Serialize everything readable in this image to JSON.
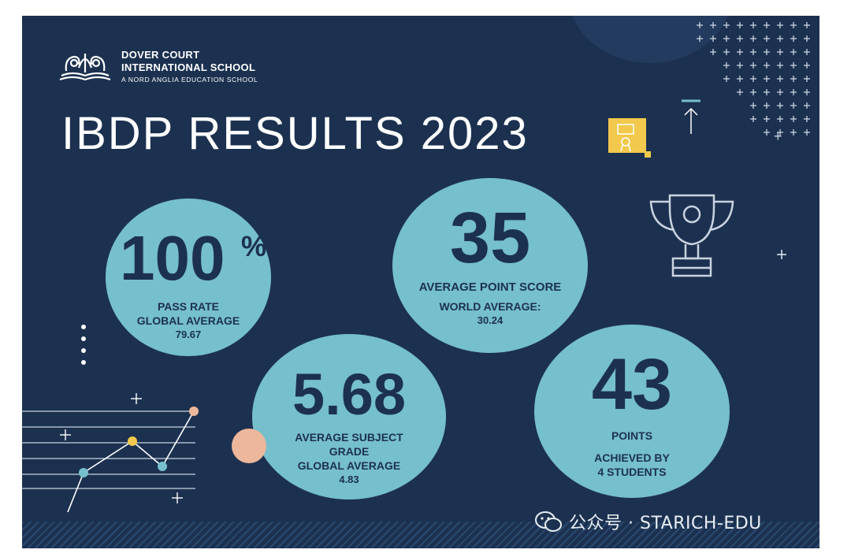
{
  "school": {
    "name_line1": "DOVER COURT",
    "name_line2": "INTERNATIONAL SCHOOL",
    "subtitle": "A NORD ANGLIA EDUCATION SCHOOL"
  },
  "title": "IBDP RESULTS 2023",
  "stats": {
    "pass_rate": {
      "value": "100",
      "unit": "%",
      "label1": "PASS RATE",
      "label2": "GLOBAL AVERAGE",
      "label3": "79.67"
    },
    "avg_point": {
      "value": "35",
      "label1": "AVERAGE POINT SCORE",
      "label2": "WORLD AVERAGE:",
      "label3": "30.24"
    },
    "avg_subject": {
      "value": "5.68",
      "label1": "AVERAGE SUBJECT",
      "label2": "GRADE",
      "label3": "GLOBAL AVERAGE",
      "label4": "4.83"
    },
    "top_points": {
      "value": "43",
      "label1": "POINTS",
      "label2": "ACHIEVED BY",
      "label3": "4 STUDENTS"
    }
  },
  "watermark": "公众号 · STARICH-EDU",
  "colors": {
    "background": "#1c3150",
    "circle": "#76bfcc",
    "accent_yellow": "#f2c94c",
    "accent_peach": "#ecb79b"
  },
  "icons": [
    "school-crest-icon",
    "certificate-icon",
    "arrow-up-icon",
    "trophy-icon",
    "wechat-icon"
  ]
}
